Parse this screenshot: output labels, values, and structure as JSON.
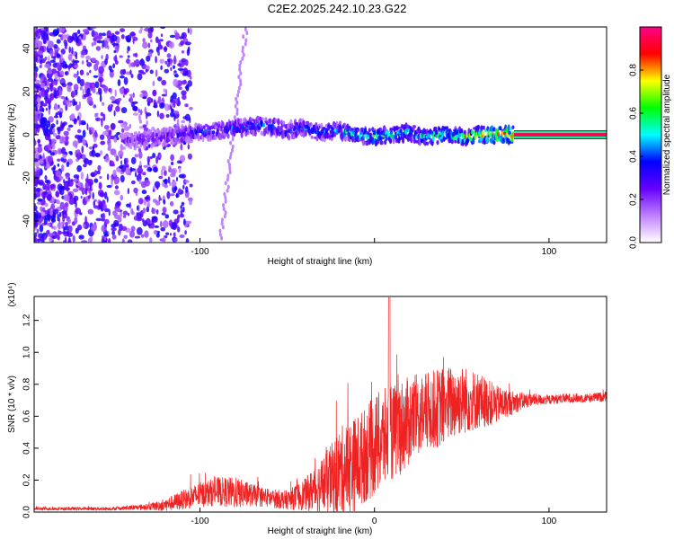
{
  "title": "C2E2.2025.242.10.23.G22",
  "chart_data": [
    {
      "type": "heatmap",
      "xlabel": "Height of straight line (km)",
      "ylabel": "Frequency (Hz)",
      "xlim": [
        -195,
        133
      ],
      "ylim": [
        -50,
        50
      ],
      "xticks": [
        -100,
        0,
        100
      ],
      "xtick_labels": [
        "-100",
        "",
        "100"
      ],
      "yticks": [
        -40,
        -20,
        0,
        20,
        40
      ],
      "ytick_labels": [
        "-40",
        "-20",
        "0",
        "20",
        "40"
      ],
      "colorbar": {
        "label": "Normalized spectral amplitude",
        "range": [
          0,
          1
        ],
        "ticks": [
          0.0,
          0.2,
          0.4,
          0.6,
          0.8
        ],
        "tick_labels": [
          "0.0",
          "0.2",
          "0.4",
          "0.6",
          "0.8"
        ],
        "colors": [
          "#ffffff",
          "#c080ff",
          "#6600ff",
          "#0000ff",
          "#00ffff",
          "#00ff00",
          "#ffff00",
          "#ff0000",
          "#ff0088"
        ]
      },
      "ridge": {
        "x": [
          -145,
          -130,
          -120,
          -110,
          -100,
          -90,
          -80,
          -70,
          -60,
          -50,
          -40,
          -30,
          -20,
          -10,
          0,
          10,
          20,
          30,
          40,
          50,
          60,
          70,
          80,
          133
        ],
        "y": [
          -3,
          -2,
          -1,
          0,
          1,
          2,
          3,
          4,
          4,
          2,
          3,
          1,
          2,
          0,
          -1,
          0,
          1,
          -1,
          0,
          -1,
          0,
          0,
          0,
          0
        ]
      },
      "ridge_amplitude": [
        0.25,
        0.3,
        0.3,
        0.35,
        0.4,
        0.4,
        0.45,
        0.45,
        0.5,
        0.45,
        0.45,
        0.45,
        0.5,
        0.6,
        0.65,
        0.6,
        0.6,
        0.6,
        0.7,
        0.75,
        0.8,
        0.85,
        0.95,
        0.95
      ]
    },
    {
      "type": "line",
      "xlabel": "Height of straight line (km)",
      "ylabel": "SNR (10 * v/v)",
      "y_multiplier": "(x10⁴)",
      "xlim": [
        -195,
        133
      ],
      "ylim": [
        0,
        1.35
      ],
      "xticks": [
        -100,
        0,
        100
      ],
      "xtick_labels": [
        "-100",
        "0",
        "100"
      ],
      "yticks": [
        0.0,
        0.2,
        0.4,
        0.6,
        0.8,
        1.0,
        1.2
      ],
      "ytick_labels": [
        "0.0",
        "0.2",
        "0.4",
        "0.6",
        "0.8",
        "1.0",
        "1.2"
      ],
      "color": "#ee2222",
      "envelope": {
        "x": [
          -195,
          -150,
          -130,
          -120,
          -110,
          -100,
          -90,
          -80,
          -70,
          -60,
          -50,
          -40,
          -30,
          -25,
          -20,
          -15,
          -10,
          -5,
          0,
          5,
          10,
          15,
          20,
          25,
          30,
          40,
          50,
          60,
          70,
          80,
          90,
          100,
          110,
          120,
          133
        ],
        "base": [
          0.02,
          0.02,
          0.03,
          0.04,
          0.07,
          0.1,
          0.12,
          0.11,
          0.1,
          0.08,
          0.07,
          0.1,
          0.15,
          0.18,
          0.22,
          0.25,
          0.28,
          0.33,
          0.38,
          0.42,
          0.46,
          0.5,
          0.54,
          0.58,
          0.6,
          0.64,
          0.68,
          0.68,
          0.66,
          0.68,
          0.7,
          0.7,
          0.71,
          0.71,
          0.72
        ],
        "spread": [
          0.01,
          0.01,
          0.02,
          0.04,
          0.06,
          0.08,
          0.09,
          0.1,
          0.07,
          0.06,
          0.06,
          0.1,
          0.18,
          0.22,
          0.28,
          0.3,
          0.3,
          0.3,
          0.32,
          0.32,
          0.3,
          0.3,
          0.28,
          0.26,
          0.25,
          0.25,
          0.22,
          0.18,
          0.12,
          0.07,
          0.04,
          0.03,
          0.03,
          0.03,
          0.03
        ]
      }
    }
  ]
}
